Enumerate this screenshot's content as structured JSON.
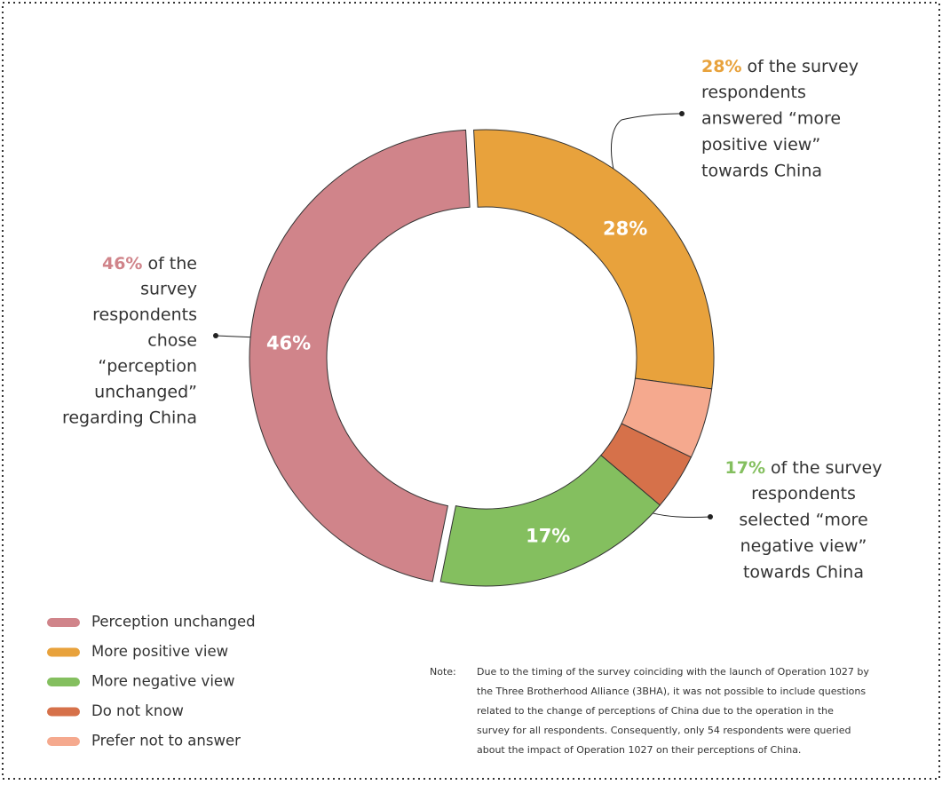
{
  "chart_data": {
    "type": "donut",
    "categories": [
      "More positive view",
      "Prefer not to answer",
      "Do not know",
      "More negative view",
      "Perception unchanged"
    ],
    "values": [
      28,
      5,
      4,
      17,
      46
    ],
    "value_labels": [
      "28%",
      null,
      null,
      "17%",
      "46%"
    ],
    "colors": [
      "#e8a23c",
      "#f5a98e",
      "#d6714a",
      "#84bf5f",
      "#d0848a"
    ],
    "legend": {
      "order": [
        4,
        0,
        3,
        2,
        1
      ],
      "position": "bottom-left"
    },
    "annotations": [
      {
        "highlight": "28%",
        "lines": [
          "of the survey",
          "respondents",
          "answered “more",
          "positive view”",
          "towards China"
        ]
      },
      {
        "highlight": "46%",
        "lines": [
          "of the",
          "survey",
          "respondents",
          "chose",
          "“perception",
          "unchanged”",
          "regarding China"
        ]
      },
      {
        "highlight": "17%",
        "lines": [
          "of the survey",
          "respondents",
          "selected “more",
          "negative view”",
          "towards China"
        ]
      }
    ],
    "note": {
      "label": "Note:",
      "lines": [
        "Due to the timing of the survey coinciding with the launch of Operation 1027 by",
        "the Three Brotherhood Alliance (3BHA), it was not possible to include questions",
        "related to the change of perceptions of China due to the operation in the",
        "survey for all respondents. Consequently, only 54 respondents were queried",
        "about the impact of Operation 1027 on their perceptions of China."
      ]
    }
  }
}
